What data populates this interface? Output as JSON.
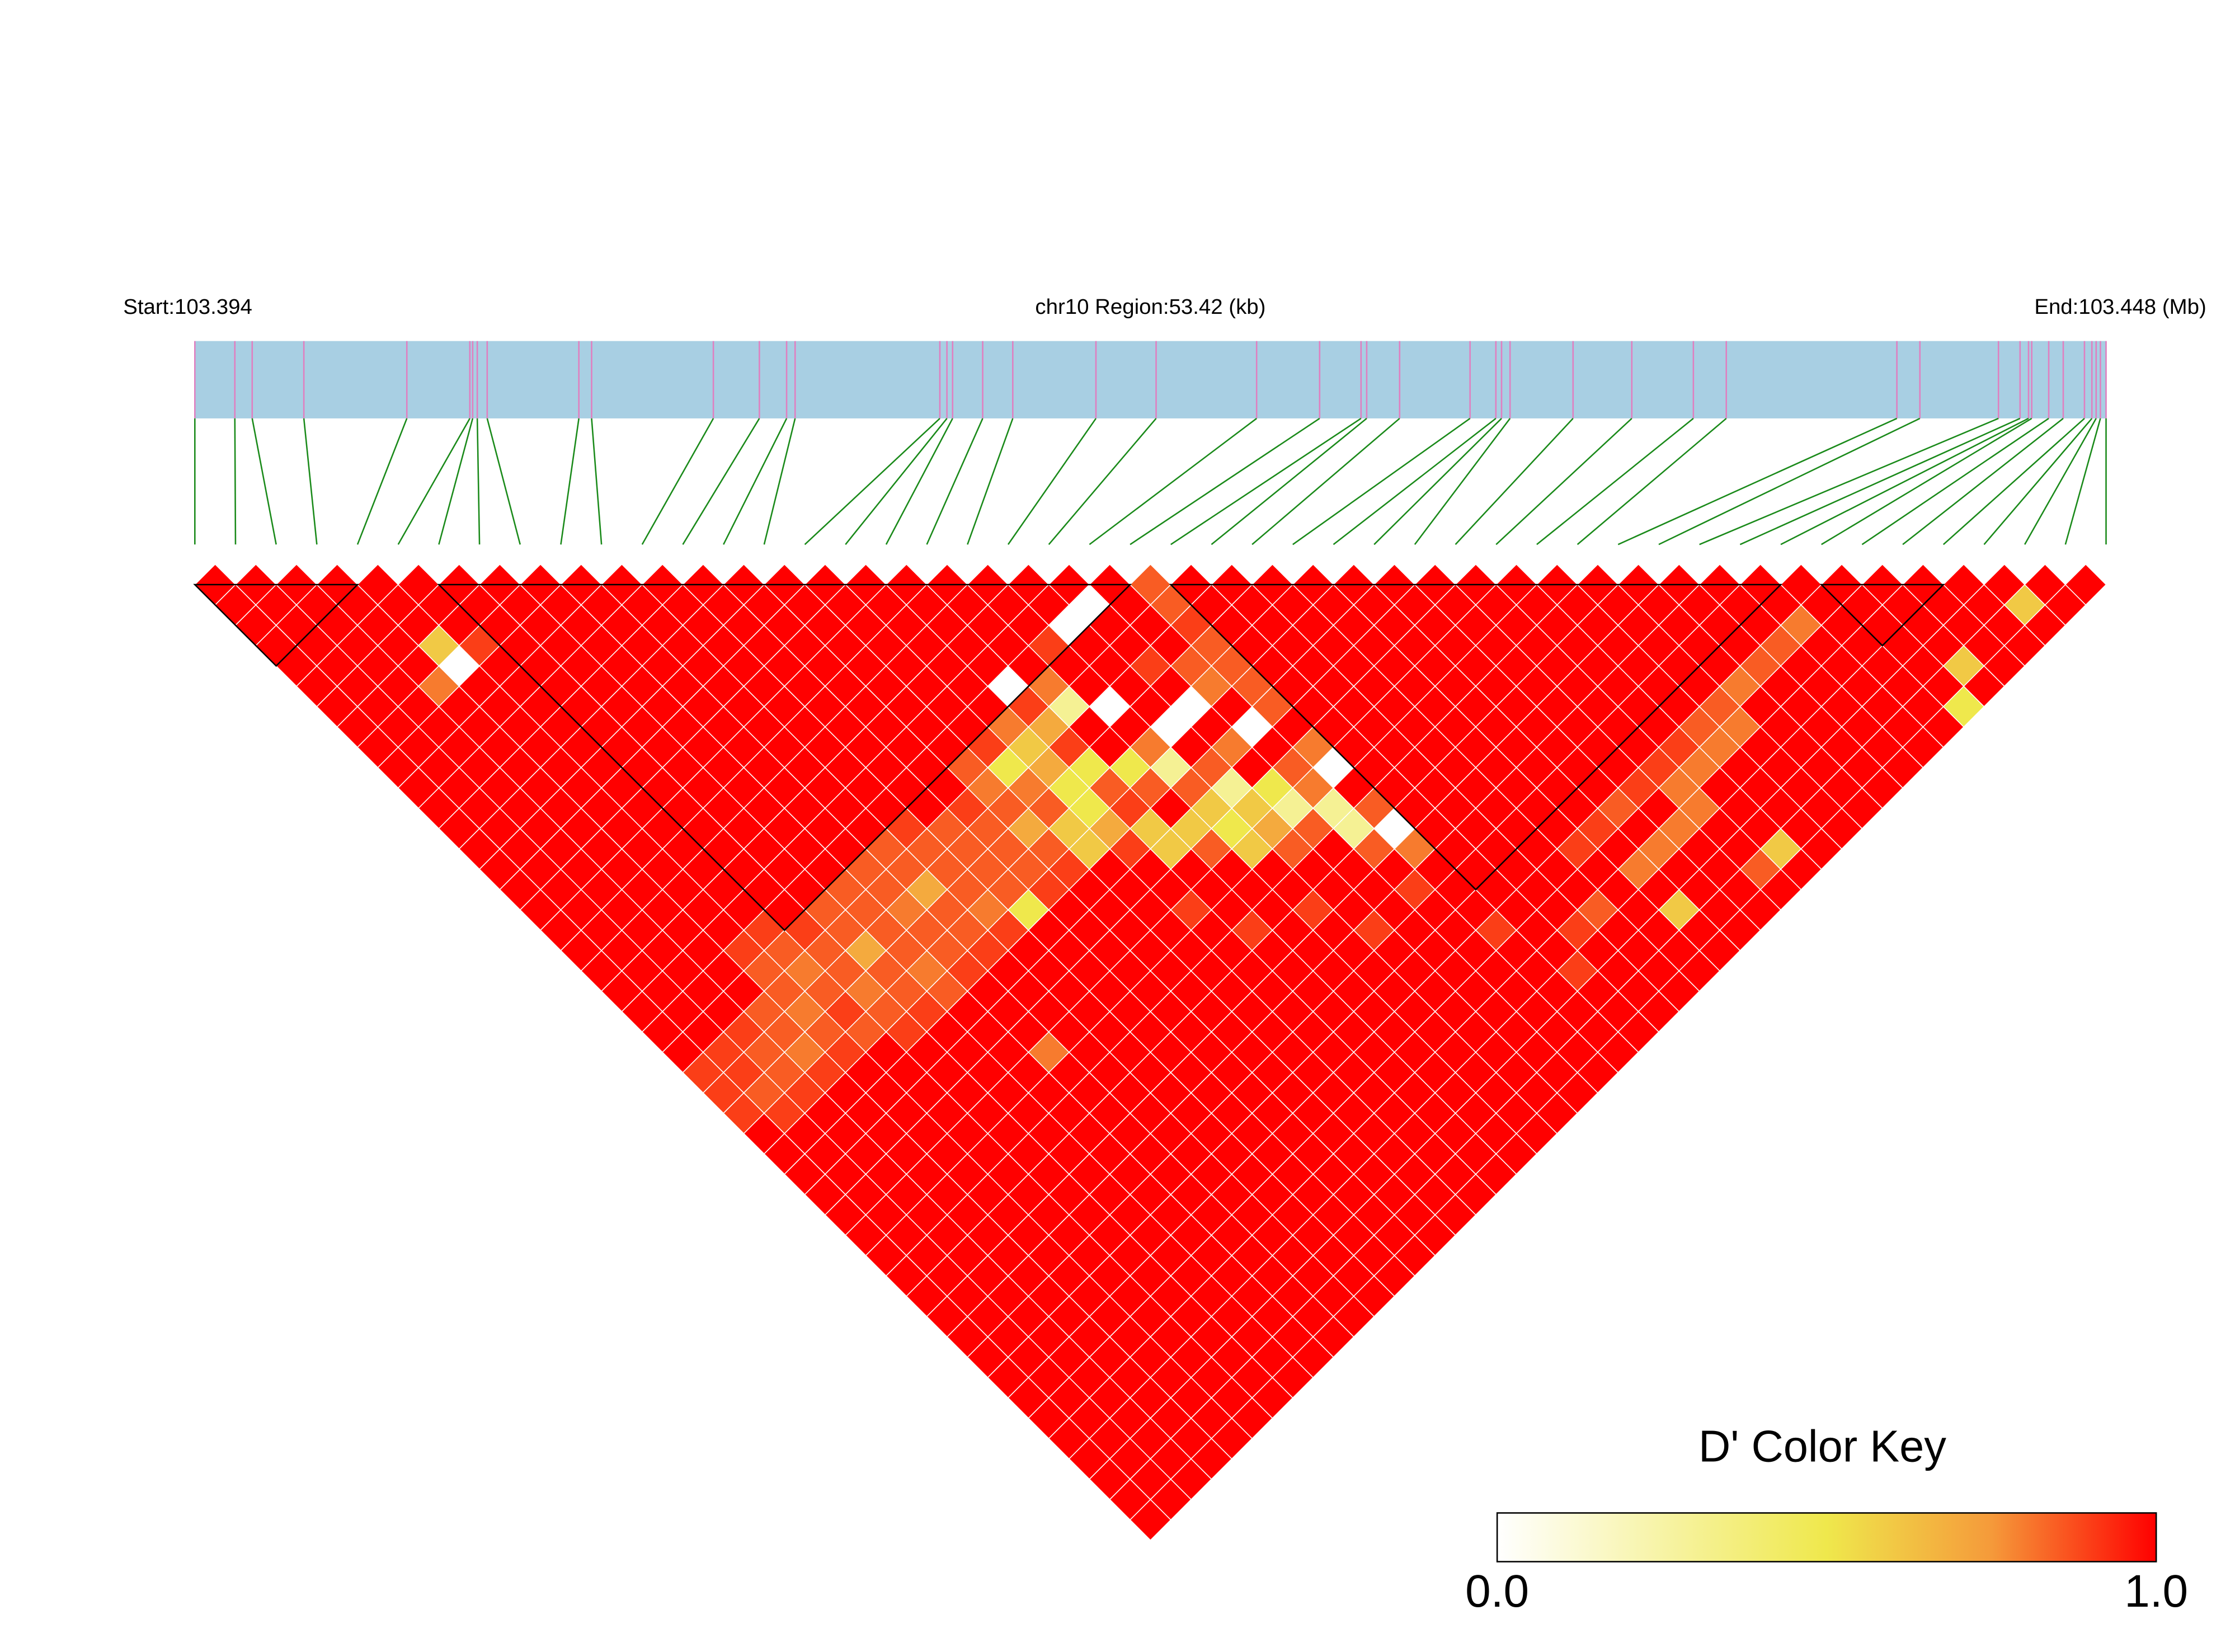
{
  "chart_data": {
    "type": "ld_heatmap",
    "start_label": "Start:103.394",
    "region_label": "chr10 Region:53.42 (kb)",
    "end_label": "End:103.448 (Mb)",
    "key_title": "D' Color Key",
    "key_ticks": [
      {
        "value": 0,
        "label": "0.0"
      },
      {
        "value": 1,
        "label": "1.0"
      }
    ],
    "colormap": [
      {
        "value": 0,
        "color": "#ffffff"
      },
      {
        "value": 0.5,
        "color": "#efe84c"
      },
      {
        "value": 0.75,
        "color": "#f59a3a"
      },
      {
        "value": 1,
        "color": "#ff0000"
      }
    ],
    "bar_color": "#a8cfe3",
    "snp_line_color": "#e07fc0",
    "connector_color": "#1a8a1a",
    "block_color": "#000000",
    "xlim": [
      103.394,
      103.448
    ],
    "positions": [
      103.394,
      103.39513,
      103.39562,
      103.39708,
      103.39999,
      103.40177,
      103.40185,
      103.40198,
      103.40226,
      103.40485,
      103.40521,
      103.40865,
      103.40995,
      103.41072,
      103.41096,
      103.41505,
      103.41525,
      103.41541,
      103.41626,
      103.41711,
      103.41946,
      103.42116,
      103.424,
      103.42578,
      103.42695,
      103.42711,
      103.42804,
      103.43003,
      103.43076,
      103.43092,
      103.43116,
      103.43294,
      103.4346,
      103.43634,
      103.43727,
      103.44209,
      103.44274,
      103.44496,
      103.44557,
      103.44581,
      103.4459,
      103.44638,
      103.44679,
      103.44739,
      103.4476,
      103.44772,
      103.44784,
      103.448
    ],
    "blocks": [
      [
        0,
        4
      ],
      [
        6,
        23
      ],
      [
        24,
        39
      ],
      [
        40,
        43
      ]
    ],
    "dprime": [
      [
        1,
        1,
        1,
        1,
        1,
        1,
        1,
        1,
        1,
        1,
        1,
        1,
        1,
        1,
        1,
        1,
        1,
        1,
        1,
        1,
        1,
        1,
        1,
        1,
        0.9,
        0.9,
        0.9,
        1,
        1,
        1,
        1,
        1,
        1,
        1,
        1,
        1,
        1,
        1,
        1,
        1,
        1,
        1,
        1,
        1,
        1,
        1,
        1
      ],
      [
        1,
        1,
        1,
        1,
        1,
        1,
        1,
        1,
        1,
        1,
        1,
        1,
        1,
        1,
        1,
        1,
        1,
        1,
        1,
        1,
        1,
        1,
        1,
        0.9,
        0.9,
        0.85,
        0.9,
        1,
        1,
        1,
        1,
        1,
        1,
        1,
        1,
        1,
        1,
        1,
        1,
        1,
        1,
        1,
        1,
        1,
        1,
        1
      ],
      [
        1,
        1,
        1,
        1,
        1,
        1,
        1,
        1,
        1,
        1,
        1,
        1,
        1,
        1,
        1,
        1,
        1,
        1,
        1,
        1,
        1,
        1,
        0.9,
        0.85,
        0.85,
        0.9,
        1,
        1,
        1,
        1,
        1,
        1,
        1,
        1,
        1,
        1,
        1,
        1,
        1,
        1,
        1,
        1,
        1,
        1,
        1
      ],
      [
        1,
        1,
        1,
        1,
        1,
        0.8,
        1,
        1,
        1,
        1,
        1,
        1,
        1,
        1,
        1,
        1,
        1,
        1,
        1,
        1,
        1,
        0.85,
        0.85,
        0.8,
        0.9,
        1,
        1,
        1,
        1,
        1,
        1,
        1,
        1,
        1,
        1,
        1,
        1,
        1,
        1,
        1,
        1,
        1,
        1,
        1
      ],
      [
        1,
        1,
        1,
        0.6,
        0,
        1,
        1,
        1,
        1,
        1,
        1,
        1,
        1,
        1,
        1,
        1,
        1,
        1,
        0.9,
        0.85,
        0.85,
        0.8,
        0.85,
        0.9,
        1,
        1,
        1,
        1,
        1,
        1,
        1,
        1,
        1,
        1,
        1,
        1,
        1,
        1,
        1,
        1,
        1,
        1,
        1
      ],
      [
        1,
        1,
        1,
        0.9,
        1,
        1,
        1,
        1,
        1,
        1,
        1,
        1,
        1,
        1,
        1,
        1,
        1,
        0.9,
        0.85,
        0.8,
        0.85,
        0.9,
        0.85,
        1,
        1,
        1,
        1,
        1,
        1,
        1,
        1,
        1,
        1,
        1,
        1,
        1,
        1,
        1,
        1,
        1,
        1,
        1
      ],
      [
        1,
        1,
        1,
        1,
        1,
        1,
        1,
        1,
        1,
        1,
        1,
        1,
        1,
        1,
        1,
        1,
        1,
        0.9,
        0.85,
        0.85,
        0.8,
        0.85,
        0.9,
        1,
        1,
        1,
        1,
        1,
        1,
        1,
        1,
        1,
        1,
        1,
        1,
        1,
        1,
        1,
        1,
        1,
        1
      ],
      [
        1,
        1,
        1,
        1,
        1,
        1,
        1,
        1,
        1,
        1,
        1,
        1,
        1,
        1,
        1,
        1,
        0.85,
        0.85,
        0.7,
        0.85,
        0.85,
        0.9,
        1,
        1,
        1,
        1,
        1,
        1,
        1,
        1,
        1,
        1,
        1,
        1,
        1,
        1,
        1,
        1,
        1,
        1
      ],
      [
        1,
        1,
        1,
        1,
        1,
        1,
        1,
        1,
        1,
        1,
        1,
        1,
        1,
        1,
        1,
        0.85,
        0.85,
        0.85,
        0.85,
        0.8,
        0.85,
        1,
        1,
        1,
        1,
        1,
        1,
        1,
        1,
        1,
        1,
        1,
        1,
        1,
        1,
        1,
        1,
        1,
        1
      ],
      [
        1,
        1,
        1,
        1,
        1,
        1,
        1,
        1,
        1,
        1,
        1,
        1,
        1,
        1,
        0.85,
        0.85,
        0.8,
        0.85,
        0.85,
        0.9,
        1,
        1,
        1,
        0.8,
        1,
        1,
        1,
        1,
        1,
        1,
        1,
        1,
        1,
        1,
        1,
        1,
        1,
        1
      ],
      [
        1,
        1,
        1,
        1,
        1,
        1,
        1,
        1,
        1,
        1,
        1,
        1,
        1,
        0.85,
        0.85,
        0.7,
        0.85,
        0.85,
        0.9,
        1,
        1,
        1,
        1,
        1,
        1,
        1,
        1,
        1,
        1,
        1,
        1,
        1,
        1,
        1,
        1,
        1,
        1
      ],
      [
        1,
        1,
        1,
        1,
        1,
        1,
        1,
        1,
        1,
        1,
        1,
        1,
        0.9,
        0.85,
        0.85,
        0.85,
        0.8,
        0.9,
        1,
        1,
        1,
        1,
        1,
        1,
        1,
        1,
        1,
        1,
        1,
        1,
        1,
        1,
        1,
        1,
        1,
        1
      ],
      [
        1,
        1,
        1,
        1,
        1,
        1,
        1,
        1,
        1,
        1,
        1,
        1,
        0.85,
        0.85,
        0.85,
        0.85,
        0.5,
        1,
        1,
        1,
        1,
        1,
        1,
        1,
        1,
        1,
        1,
        1,
        1,
        1,
        1,
        1,
        1,
        1,
        1
      ],
      [
        1,
        1,
        1,
        1,
        1,
        1,
        1,
        1,
        1,
        1,
        1,
        0.9,
        0.85,
        0.85,
        0.85,
        0.9,
        1,
        1,
        1,
        1,
        1,
        1,
        1,
        1,
        1,
        1,
        1,
        1,
        1,
        1,
        1,
        1,
        1,
        1
      ],
      [
        1,
        1,
        1,
        1,
        1,
        1,
        1,
        1,
        1,
        0.85,
        0.8,
        0.85,
        0.7,
        0.85,
        0.9,
        1,
        1,
        1,
        1,
        1,
        1,
        1,
        1,
        1,
        1,
        1,
        1,
        1,
        1,
        1,
        1,
        1,
        1
      ],
      [
        1,
        1,
        1,
        1,
        1,
        1,
        1,
        1,
        0.9,
        0.5,
        0.8,
        0.85,
        0.6,
        0.6,
        1,
        1,
        1,
        1,
        1,
        1,
        1,
        1,
        1,
        1,
        1,
        1,
        1,
        1,
        1,
        1,
        1,
        1
      ],
      [
        1,
        1,
        1,
        1,
        1,
        1,
        1,
        0.8,
        0.6,
        0.7,
        0.5,
        0.5,
        0.7,
        0.9,
        1,
        1,
        0.9,
        1,
        1,
        1,
        1,
        1,
        1,
        1,
        1,
        1,
        1,
        1,
        1,
        1,
        1
      ],
      [
        1,
        1,
        1,
        1,
        1,
        0,
        0.9,
        0.7,
        0.9,
        0.5,
        0.85,
        0.9,
        0.6,
        0.6,
        1,
        1,
        1,
        0.9,
        1,
        1,
        1,
        1,
        1,
        1,
        1,
        1,
        1,
        1,
        1,
        1
      ],
      [
        1,
        1,
        1,
        1,
        1,
        0.8,
        0.3,
        1,
        1,
        0.5,
        0.85,
        1,
        0.6,
        0.85,
        1,
        1,
        1,
        1,
        1,
        1,
        1,
        1,
        1,
        1,
        1,
        1,
        1,
        1,
        1
      ],
      [
        1,
        1,
        1,
        0.9,
        1,
        1,
        0,
        1,
        0.8,
        0.3,
        0.85,
        0.6,
        0.5,
        0.6,
        1,
        1,
        0.9,
        1,
        1,
        1,
        1,
        1,
        1,
        1,
        1,
        1,
        1,
        1
      ],
      [
        1,
        1,
        0,
        1,
        1,
        1,
        1,
        0,
        1,
        0.85,
        0.3,
        0.6,
        0.7,
        0.85,
        1,
        1,
        1,
        0.9,
        1,
        1,
        1,
        1,
        1,
        1,
        1,
        1,
        1
      ],
      [
        1,
        0,
        1,
        1,
        0.9,
        1,
        0,
        1,
        0.8,
        1,
        0.5,
        0.3,
        0.85,
        1,
        1,
        1,
        1,
        1,
        1,
        1,
        1,
        1,
        1,
        1,
        1,
        1
      ],
      [
        1,
        1,
        1,
        1,
        0.85,
        0.8,
        1,
        0,
        1,
        0.85,
        0.8,
        0.3,
        0.3,
        0.85,
        1,
        0.9,
        1,
        1,
        1,
        1,
        1,
        1,
        1,
        1,
        1
      ],
      [
        0.85,
        0.85,
        0.9,
        0.85,
        0.85,
        0.85,
        0.85,
        1,
        0.8,
        0,
        1,
        0.85,
        0,
        0.8,
        1,
        1,
        1,
        0.9,
        1,
        1,
        1,
        1,
        1,
        1
      ],
      [
        1,
        1,
        1,
        1,
        1,
        1,
        1,
        1,
        1,
        1,
        1,
        1,
        1,
        1,
        1,
        1,
        1,
        1,
        1,
        0.9,
        1,
        1,
        1
      ],
      [
        1,
        1,
        1,
        1,
        1,
        1,
        1,
        1,
        1,
        1,
        1,
        1,
        1,
        1,
        1,
        1,
        1,
        0.9,
        1,
        1,
        1,
        1
      ],
      [
        1,
        1,
        1,
        1,
        1,
        1,
        1,
        1,
        1,
        1,
        1,
        1,
        1,
        1,
        1,
        1,
        0.85,
        1,
        1,
        1,
        1
      ],
      [
        1,
        1,
        1,
        1,
        1,
        1,
        1,
        1,
        1,
        1,
        1,
        1,
        1,
        0.9,
        1,
        1,
        1,
        1,
        1,
        1
      ],
      [
        1,
        1,
        1,
        1,
        1,
        1,
        1,
        1,
        1,
        1,
        1,
        1,
        0.9,
        1,
        0.8,
        1,
        0.6,
        1,
        1
      ],
      [
        1,
        1,
        1,
        1,
        1,
        1,
        1,
        1,
        1,
        1,
        1,
        0.85,
        1,
        0.8,
        1,
        1,
        1,
        1
      ],
      [
        1,
        1,
        1,
        1,
        1,
        1,
        1,
        1,
        1,
        1,
        0.9,
        1,
        0.8,
        1,
        1,
        1,
        1
      ],
      [
        1,
        1,
        1,
        1,
        1,
        1,
        1,
        1,
        1,
        0.9,
        0.8,
        0.8,
        1,
        1,
        0.85,
        1
      ],
      [
        1,
        1,
        1,
        1,
        1,
        1,
        1,
        1,
        0.9,
        0.8,
        1,
        1,
        1,
        0.6,
        1
      ],
      [
        1,
        1,
        1,
        1,
        1,
        1,
        1,
        0.85,
        0.8,
        1,
        1,
        1,
        1,
        1
      ],
      [
        1,
        1,
        1,
        1,
        1,
        1,
        0.85,
        0.8,
        1,
        1,
        1,
        1,
        1
      ],
      [
        1,
        1,
        1,
        1,
        1,
        0.8,
        1,
        1,
        1,
        1,
        1,
        1
      ],
      [
        1,
        1,
        1,
        1,
        0.85,
        1,
        1,
        1,
        1,
        1,
        1
      ],
      [
        1,
        1,
        1,
        0.85,
        1,
        1,
        1,
        1,
        1,
        1
      ],
      [
        1,
        1,
        0.8,
        1,
        1,
        1,
        1,
        1,
        1
      ],
      [
        1,
        1,
        1,
        1,
        1,
        1,
        1,
        1
      ],
      [
        1,
        1,
        1,
        1,
        1,
        1,
        0.5
      ],
      [
        1,
        1,
        1,
        1,
        0.6,
        1
      ],
      [
        1,
        1,
        1,
        1,
        1
      ],
      [
        1,
        1,
        1,
        1
      ],
      [
        1,
        0.6,
        1
      ],
      [
        1,
        1
      ],
      [
        1
      ]
    ]
  }
}
